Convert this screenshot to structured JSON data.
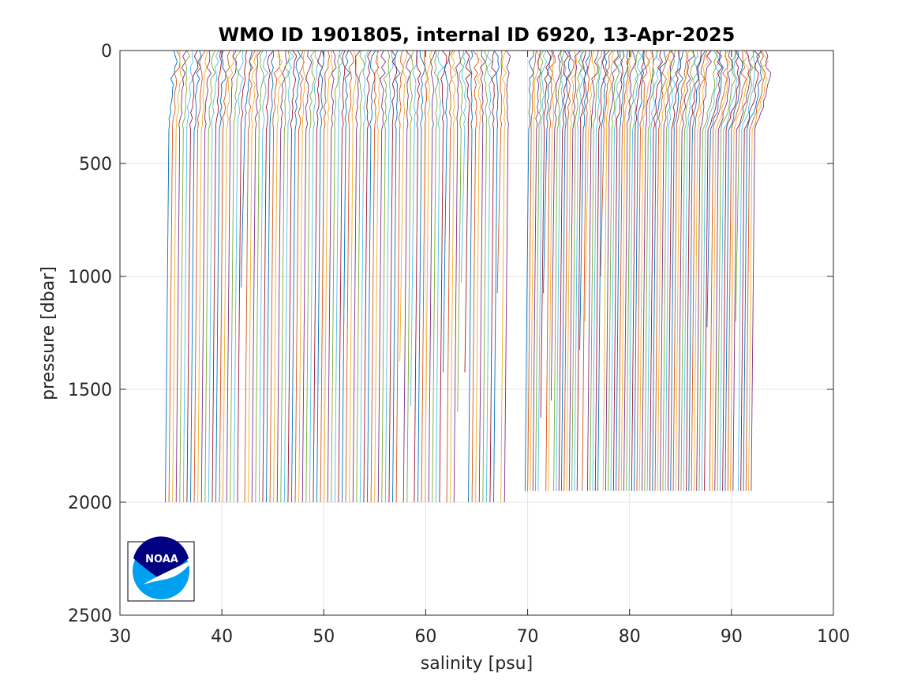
{
  "chart_data": {
    "type": "line",
    "title": "WMO ID 1901805, internal ID 6920, 13-Apr-2025",
    "xlabel": "salinity [psu]",
    "ylabel": "pressure [dbar]",
    "xlim": [
      30,
      100
    ],
    "ylim": [
      0,
      2500
    ],
    "y_reversed": true,
    "grid": true,
    "xticks": [
      30,
      40,
      50,
      60,
      70,
      80,
      90,
      100
    ],
    "yticks": [
      0,
      500,
      1000,
      1500,
      2000,
      2500
    ],
    "xtick_labels": [
      "30",
      "40",
      "50",
      "60",
      "70",
      "80",
      "90",
      "100"
    ],
    "ytick_labels": [
      "0",
      "500",
      "1000",
      "1500",
      "2000",
      "2500"
    ],
    "series_colors": [
      "#0072bd",
      "#d95319",
      "#edb120",
      "#7e2f8e",
      "#77ac30",
      "#4dbeee",
      "#a2142f"
    ],
    "profile_group_1": {
      "count": 95,
      "surface_salinity_start": 35.4,
      "surface_salinity_step": 0.347,
      "deep_salinity_start": 34.8,
      "deep_salinity_step": 0.354,
      "max_pressure": 2010
    },
    "profile_group_2": {
      "count": 88,
      "surface_salinity_start": 70.4,
      "surface_salinity_step": 0.266,
      "deep_salinity_start": 70.1,
      "deep_salinity_step": 0.255,
      "max_pressure": 1950
    }
  },
  "logo": {
    "text": "NOAA",
    "color_dark": "#000080",
    "color_light": "#00a0f0"
  }
}
